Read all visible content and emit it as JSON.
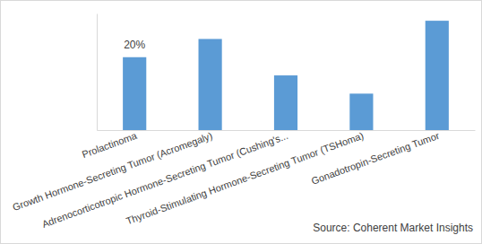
{
  "chart_data": {
    "type": "bar",
    "categories": [
      "Prolactinoma",
      "Growth Hormone-Secreting Tumor (Acromegaly)",
      "Adrenocorticotropic Hormone-Secreting Tumor (Cushing's...",
      "Thyroid-Stimulating Hormone-Secreting Tumor (TSHoma)",
      "Gonadotropin-Secreting Tumor"
    ],
    "values": [
      20,
      25,
      15,
      10,
      30
    ],
    "value_labels": [
      "20%",
      null,
      null,
      null,
      null
    ],
    "data_labels": true,
    "color": "#5b9bd5",
    "ylim": [
      0,
      32
    ],
    "tick_labels": "x",
    "grid": false,
    "annotations": [
      "Source: Coherent Market Insights"
    ]
  }
}
